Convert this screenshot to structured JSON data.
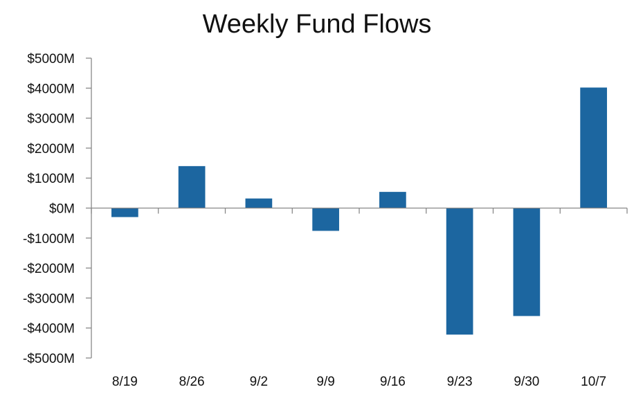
{
  "chart_data": {
    "type": "bar",
    "title": "Weekly Fund Flows",
    "xlabel": "",
    "ylabel": "",
    "categories": [
      "8/19",
      "8/26",
      "9/2",
      "9/9",
      "9/16",
      "9/23",
      "9/30",
      "10/7"
    ],
    "values": [
      -300,
      1400,
      320,
      -760,
      540,
      -4220,
      -3600,
      4020
    ],
    "ylim": [
      -5000,
      5000
    ],
    "ytick_values": [
      5000,
      4000,
      3000,
      2000,
      1000,
      0,
      -1000,
      -2000,
      -3000,
      -4000,
      -5000
    ],
    "ytick_labels": [
      "$5000M",
      "$4000M",
      "$3000M",
      "$2000M",
      "$1000M",
      "$0M",
      "-$1000M",
      "-$2000M",
      "-$3000M",
      "-$4000M",
      "-$5000M"
    ],
    "bar_color": "#1c66a0",
    "axis_color": "#888888",
    "grid": false,
    "legend": "none"
  }
}
